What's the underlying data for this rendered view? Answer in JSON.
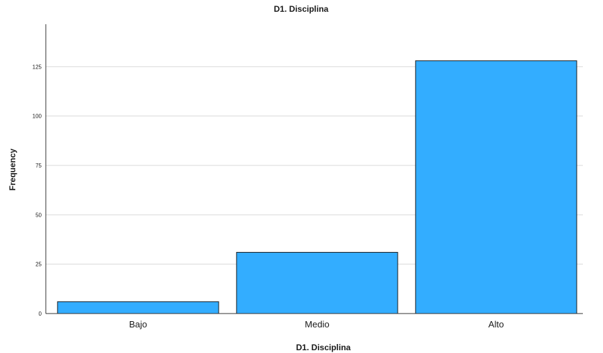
{
  "chart_data": {
    "type": "bar",
    "title": "D1. Disciplina",
    "xlabel": "D1. Disciplina",
    "ylabel": "Frequency",
    "categories": [
      "Bajo",
      "Medio",
      "Alto"
    ],
    "values": [
      6,
      31,
      128
    ],
    "ylim": [
      0,
      150
    ],
    "yticks": [
      0,
      25,
      50,
      75,
      100,
      125
    ],
    "grid": true,
    "legend": "none",
    "bar_color": "#33adff",
    "bar_stroke": "#1a1a1a",
    "grid_color": "#d9d9d9"
  }
}
